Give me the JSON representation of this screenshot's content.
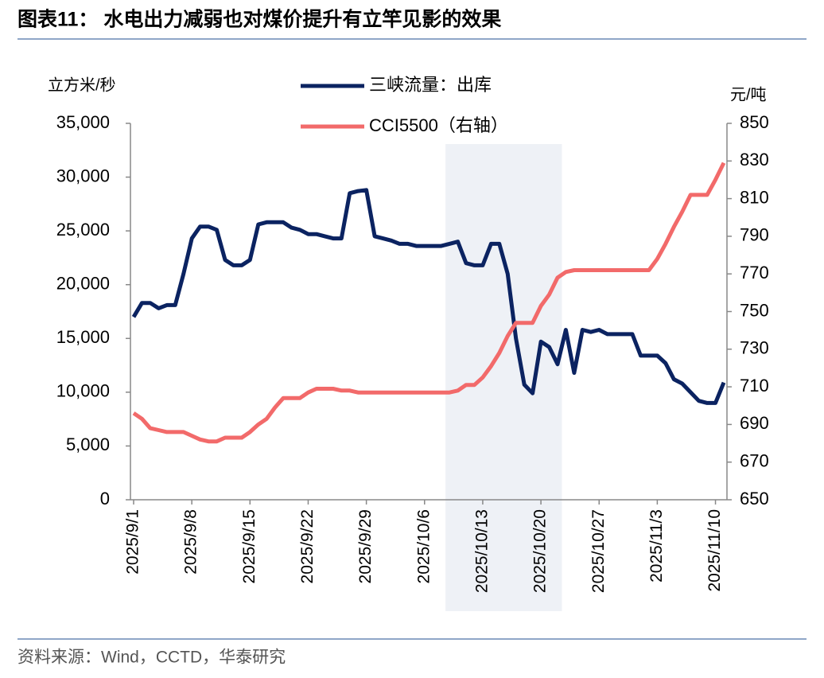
{
  "chart_data": {
    "type": "line",
    "title": "图表11：  水电出力减弱也对煤价提升有立竿见影的效果",
    "source": "资料来源：Wind，CCTD，华泰研究",
    "y_label": "立方米/秒",
    "y2_label": "元/吨",
    "categories": [
      "2025/9/1",
      null,
      null,
      null,
      null,
      null,
      null,
      "2025/9/8",
      null,
      null,
      null,
      null,
      null,
      null,
      "2025/9/15",
      null,
      null,
      null,
      null,
      null,
      null,
      "2025/9/22",
      null,
      null,
      null,
      null,
      null,
      null,
      "2025/9/29",
      null,
      null,
      null,
      null,
      null,
      null,
      "2025/10/6",
      null,
      null,
      null,
      null,
      null,
      null,
      "2025/10/13",
      null,
      null,
      null,
      null,
      null,
      null,
      "2025/10/20",
      null,
      null,
      null,
      null,
      null,
      null,
      "2025/10/27",
      null,
      null,
      null,
      null,
      null,
      null,
      "2025/11/3",
      null,
      null,
      null,
      null,
      null,
      null,
      "2025/11/10",
      null
    ],
    "highlight": {
      "start": 38,
      "end": 52
    },
    "series": [
      {
        "name": "三峡流量：出库",
        "color": "#0b2361",
        "axis": "y",
        "values": [
          17000,
          18300,
          18300,
          17800,
          18100,
          18100,
          21000,
          24300,
          25400,
          25400,
          25100,
          22300,
          21800,
          21800,
          22300,
          25600,
          25800,
          25800,
          25800,
          25300,
          25100,
          24700,
          24700,
          24500,
          24300,
          24300,
          28500,
          28700,
          28800,
          24500,
          24300,
          24100,
          23800,
          23800,
          23600,
          23600,
          23600,
          23600,
          23800,
          24000,
          22000,
          21800,
          21800,
          23800,
          23800,
          21000,
          15000,
          10700,
          9900,
          14700,
          14200,
          12600,
          15800,
          11800,
          15800,
          15600,
          15800,
          15400,
          15400,
          15400,
          15400,
          13400,
          13400,
          13400,
          12700,
          11200,
          10800,
          10000,
          9200,
          9000,
          9000,
          10900
        ]
      },
      {
        "name": "CCI5500（右轴）",
        "color": "#f26a6a",
        "axis": "y2",
        "values": [
          696,
          693,
          688,
          687,
          686,
          686,
          686,
          684,
          682,
          681,
          681,
          683,
          683,
          683,
          686,
          690,
          693,
          699,
          704,
          704,
          704,
          707,
          709,
          709,
          709,
          708,
          708,
          707,
          707,
          707,
          707,
          707,
          707,
          707,
          707,
          707,
          707,
          707,
          707,
          708,
          711,
          711,
          715,
          721,
          728,
          737,
          744,
          744,
          744,
          753,
          759,
          768,
          771,
          772,
          772,
          772,
          772,
          772,
          772,
          772,
          772,
          772,
          772,
          778,
          786,
          795,
          803,
          812,
          812,
          812,
          820,
          829
        ]
      }
    ],
    "ylim": [
      0,
      35000
    ],
    "yticks": [
      0,
      {
        "value": 5000,
        "label": "5,000"
      },
      {
        "value": 10000,
        "label": "10,000"
      },
      {
        "value": 15000,
        "label": "15,000"
      },
      {
        "value": 20000,
        "label": "20,000"
      },
      {
        "value": 25000,
        "label": "25,000"
      },
      {
        "value": 30000,
        "label": "30,000"
      },
      {
        "value": 35000,
        "label": "35,000"
      }
    ],
    "y2lim": [
      650,
      850
    ],
    "y2ticks": [
      650,
      670,
      690,
      710,
      730,
      750,
      770,
      790,
      810,
      830,
      850
    ],
    "legend": "top"
  }
}
